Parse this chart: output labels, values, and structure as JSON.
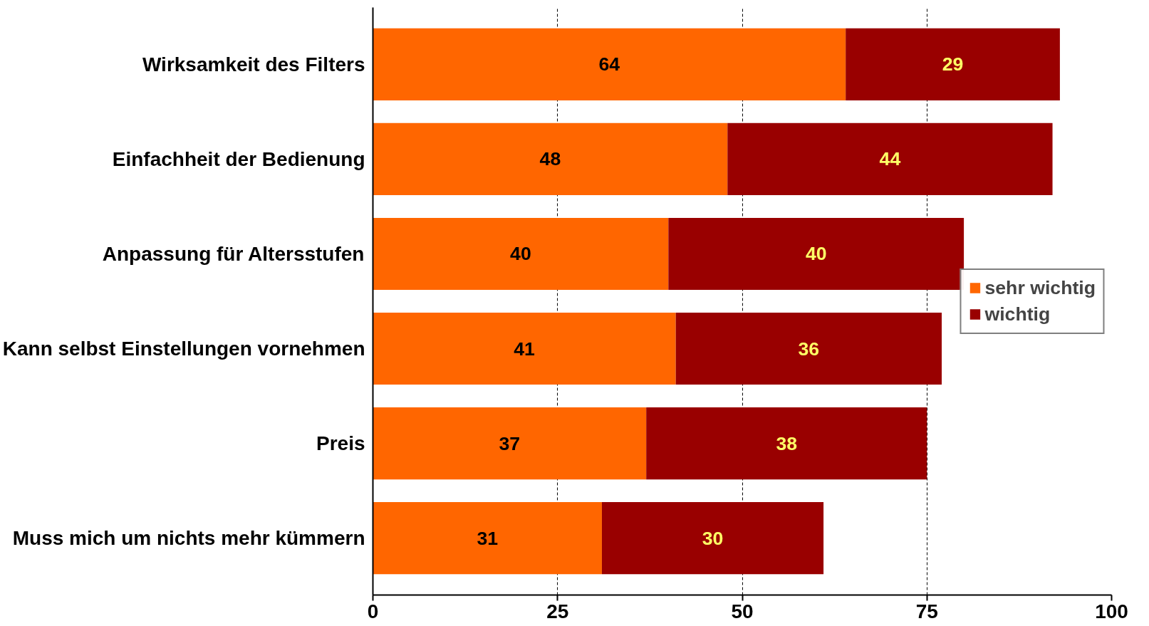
{
  "chart_data": {
    "type": "bar",
    "orientation": "horizontal",
    "stacked": true,
    "categories": [
      "Wirksamkeit des Filters",
      "Einfachheit der Bedienung",
      "Anpassung für Altersstufen",
      "Kann selbst Einstellungen vornehmen",
      "Preis",
      "Muss mich um nichts mehr kümmern"
    ],
    "series": [
      {
        "name": "sehr wichtig",
        "color": "#ff6600",
        "values": [
          64,
          48,
          40,
          41,
          37,
          31
        ]
      },
      {
        "name": "wichtig",
        "color": "#990000",
        "values": [
          29,
          44,
          40,
          36,
          38,
          30
        ]
      }
    ],
    "xlim": [
      0,
      100
    ],
    "xticks": [
      0,
      25,
      50,
      75,
      100
    ],
    "grid": "x",
    "legend": "right",
    "data_labels": true
  }
}
